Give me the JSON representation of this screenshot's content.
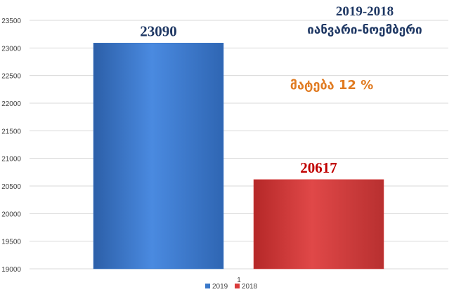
{
  "chart_data": {
    "type": "bar",
    "categories": [
      "1"
    ],
    "series": [
      {
        "name": "2019",
        "values": [
          23090
        ],
        "color": "#3a78c9",
        "label_color": "#1f3864"
      },
      {
        "name": "2018",
        "values": [
          20617
        ],
        "color": "#d93b3b",
        "label_color": "#c00000"
      }
    ],
    "title": "2019-2018",
    "subtitle": "იანვარი-ნოემბერი",
    "annotation": "მატება 12 %",
    "annotation_color": "#e07b22",
    "ylim": [
      19000,
      23500
    ],
    "yticks": [
      19000,
      19500,
      20000,
      20500,
      21000,
      21500,
      22000,
      22500,
      23000,
      23500
    ],
    "grid": true,
    "legend_position": "bottom"
  }
}
